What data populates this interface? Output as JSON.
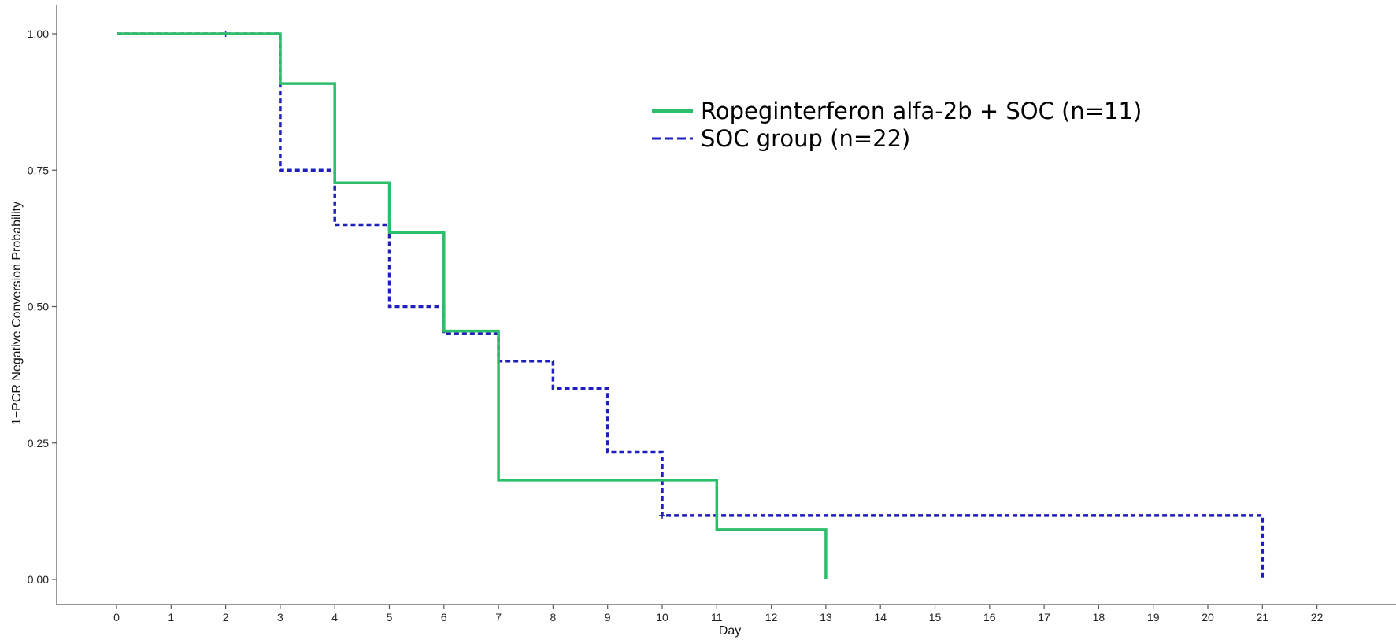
{
  "chart_data": {
    "type": "line",
    "step": true,
    "title": "",
    "xlabel": "Day",
    "ylabel": "1−PCR Negative Conversion Probability",
    "xlim": [
      -1.1,
      23.5
    ],
    "ylim": [
      -0.05,
      1.05
    ],
    "x_ticks": [
      0,
      1,
      2,
      3,
      4,
      5,
      6,
      7,
      8,
      9,
      10,
      11,
      12,
      13,
      14,
      15,
      16,
      17,
      18,
      19,
      20,
      21,
      22
    ],
    "x_tick_labels": [
      "0",
      "1",
      "2",
      "3",
      "4",
      "5",
      "6",
      "7",
      "8",
      "9",
      "10",
      "11",
      "12",
      "13",
      "14",
      "15",
      "16",
      "17",
      "18",
      "19",
      "20",
      "21",
      "22"
    ],
    "y_ticks": [
      0,
      0.25,
      0.5,
      0.75,
      1
    ],
    "y_tick_labels": [
      "0.00",
      "0.25",
      "0.50",
      "0.75",
      "1.00"
    ],
    "grid": false,
    "legend_position": "top-center",
    "series": [
      {
        "name": "Ropeginterferon alfa-2b + SOC (n=11)",
        "style": "solid",
        "color": "#2ebd6b",
        "points": [
          [
            0,
            1.0
          ],
          [
            3,
            0.909
          ],
          [
            4,
            0.727
          ],
          [
            5,
            0.636
          ],
          [
            6,
            0.455
          ],
          [
            7,
            0.182
          ],
          [
            11,
            0.091
          ],
          [
            13,
            0.0
          ]
        ],
        "end_x": 13,
        "censor_x": []
      },
      {
        "name": "SOC group (n=22)",
        "style": "dashed",
        "color": "#1f1fbf",
        "points": [
          [
            0,
            1.0
          ],
          [
            3,
            0.75
          ],
          [
            4,
            0.65
          ],
          [
            5,
            0.5
          ],
          [
            6,
            0.45
          ],
          [
            7,
            0.4
          ],
          [
            8,
            0.35
          ],
          [
            9,
            0.233
          ],
          [
            10,
            0.117
          ],
          [
            21,
            0.0
          ]
        ],
        "end_x": 21,
        "censor_x": [
          2,
          10
        ]
      }
    ]
  }
}
